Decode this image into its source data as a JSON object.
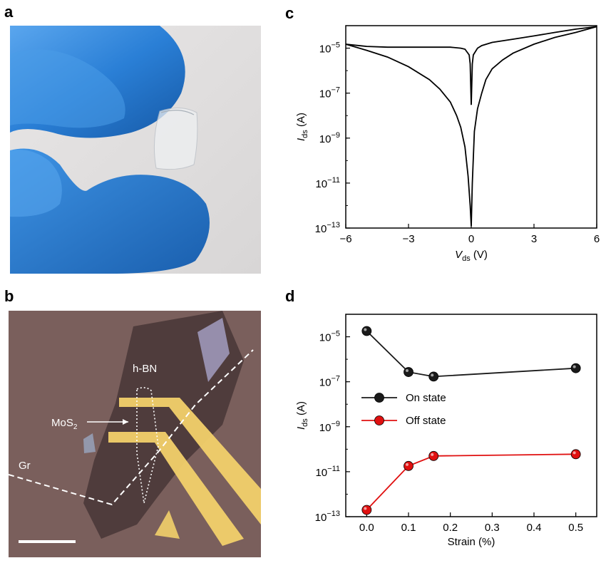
{
  "panels": {
    "a": {
      "letter": "a"
    },
    "b": {
      "letter": "b",
      "labels": {
        "hbn": "h-BN",
        "mos2": "MoS",
        "mos2_sub": "2",
        "gr": "Gr"
      }
    },
    "c": {
      "letter": "c"
    },
    "d": {
      "letter": "d"
    }
  },
  "chart_data": [
    {
      "panel": "c",
      "type": "line",
      "xlabel_main": "V",
      "xlabel_sub": "ds",
      "xlabel_unit": " (V)",
      "ylabel_main": "I",
      "ylabel_sub": "ds",
      "ylabel_unit": " (A)",
      "log_y": true,
      "xlim": [
        -6,
        6
      ],
      "ylim": [
        1e-13,
        0.0001
      ],
      "x_ticks": [
        "-6",
        "-3",
        "0",
        "3",
        "6"
      ],
      "y_ticks": [
        {
          "base": "10",
          "exp": "-5"
        },
        {
          "base": "10",
          "exp": "-7"
        },
        {
          "base": "10",
          "exp": "-9"
        },
        {
          "base": "10",
          "exp": "-11"
        },
        {
          "base": "10",
          "exp": "-13"
        }
      ],
      "series": [
        {
          "x": [
            -6,
            -5,
            -4,
            -3,
            -2,
            -1,
            -0.5,
            -0.3,
            -0.1,
            -0.05,
            0,
            0.05,
            0.1,
            0.3,
            0.5,
            1,
            2,
            3,
            4,
            5,
            6
          ],
          "y": [
            1.5e-05,
            1.2e-05,
            1.1e-05,
            1.1e-05,
            1.1e-05,
            1.1e-05,
            1e-05,
            9e-06,
            5e-06,
            2e-06,
            3e-08,
            2e-06,
            5e-06,
            1e-05,
            1.3e-05,
            1.8e-05,
            2.5e-05,
            3.5e-05,
            5e-05,
            7e-05,
            9e-05
          ]
        },
        {
          "x": [
            -6,
            -5,
            -4,
            -3,
            -2,
            -1.5,
            -1,
            -0.7,
            -0.5,
            -0.3,
            -0.15,
            -0.05,
            0,
            0.05,
            0.15,
            0.3,
            0.5,
            0.7,
            1,
            1.5,
            2,
            3,
            4,
            5,
            6
          ],
          "y": [
            1.5e-05,
            8e-06,
            4e-06,
            1.5e-06,
            4e-07,
            1.5e-07,
            4e-08,
            1e-08,
            3e-09,
            4e-10,
            2e-11,
            1e-12,
            1.2e-13,
            1e-11,
            2e-09,
            2e-08,
            1e-07,
            4e-07,
            1.2e-06,
            3e-06,
            6e-06,
            1.5e-05,
            3e-05,
            5e-05,
            9e-05
          ]
        }
      ]
    },
    {
      "panel": "d",
      "type": "line",
      "xlabel": "Strain (%)",
      "ylabel_main": "I",
      "ylabel_sub": "ds",
      "ylabel_unit": " (A)",
      "log_y": true,
      "xlim": [
        -0.05,
        0.55
      ],
      "ylim": [
        1e-13,
        0.0001
      ],
      "x_ticks": [
        "0.0",
        "0.1",
        "0.2",
        "0.3",
        "0.4",
        "0.5"
      ],
      "y_ticks": [
        {
          "base": "10",
          "exp": "-5"
        },
        {
          "base": "10",
          "exp": "-7"
        },
        {
          "base": "10",
          "exp": "-9"
        },
        {
          "base": "10",
          "exp": "-11"
        },
        {
          "base": "10",
          "exp": "-13"
        }
      ],
      "series": [
        {
          "name": "On state",
          "color": "#1a1a1a",
          "x": [
            0.0,
            0.1,
            0.16,
            0.5
          ],
          "y": [
            1.8e-05,
            2.7e-07,
            1.7e-07,
            4e-07
          ]
        },
        {
          "name": "Off state",
          "color": "#e01010",
          "x": [
            0.0,
            0.1,
            0.16,
            0.5
          ],
          "y": [
            2e-13,
            1.8e-11,
            5e-11,
            6e-11
          ]
        }
      ],
      "legend_position": "center-left"
    }
  ],
  "colors": {
    "glove": "#2a7fd6",
    "substrate": "#6e5552",
    "electrode": "#f2d06a"
  }
}
